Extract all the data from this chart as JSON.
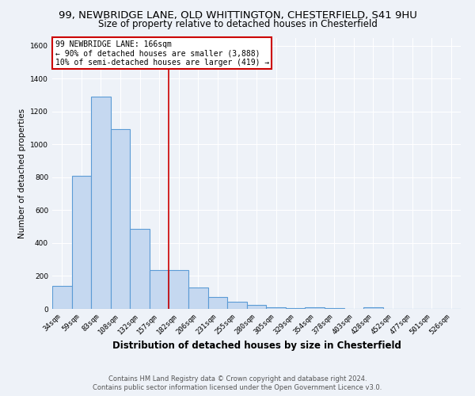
{
  "title": "99, NEWBRIDGE LANE, OLD WHITTINGTON, CHESTERFIELD, S41 9HU",
  "subtitle": "Size of property relative to detached houses in Chesterfield",
  "xlabel": "Distribution of detached houses by size in Chesterfield",
  "ylabel": "Number of detached properties",
  "categories": [
    "34sqm",
    "59sqm",
    "83sqm",
    "108sqm",
    "132sqm",
    "157sqm",
    "182sqm",
    "206sqm",
    "231sqm",
    "255sqm",
    "280sqm",
    "305sqm",
    "329sqm",
    "354sqm",
    "378sqm",
    "403sqm",
    "428sqm",
    "452sqm",
    "477sqm",
    "501sqm",
    "526sqm"
  ],
  "values": [
    140,
    810,
    1290,
    1095,
    487,
    237,
    237,
    130,
    70,
    42,
    22,
    12,
    5,
    12,
    3,
    2,
    10,
    0,
    0,
    0,
    0
  ],
  "bar_color": "#c5d8f0",
  "bar_edge_color": "#5b9bd5",
  "bar_edge_width": 0.8,
  "vline_x": 5.5,
  "vline_color": "#cc0000",
  "annotation_text": "99 NEWBRIDGE LANE: 166sqm\n← 90% of detached houses are smaller (3,888)\n10% of semi-detached houses are larger (419) →",
  "annotation_box_color": "#ffffff",
  "annotation_box_edge": "#cc0000",
  "ylim": [
    0,
    1650
  ],
  "yticks": [
    0,
    200,
    400,
    600,
    800,
    1000,
    1200,
    1400,
    1600
  ],
  "background_color": "#eef2f8",
  "grid_color": "#ffffff",
  "footer_line1": "Contains HM Land Registry data © Crown copyright and database right 2024.",
  "footer_line2": "Contains public sector information licensed under the Open Government Licence v3.0.",
  "title_fontsize": 9.5,
  "subtitle_fontsize": 8.5,
  "xlabel_fontsize": 8.5,
  "ylabel_fontsize": 7.5,
  "tick_fontsize": 6.5,
  "footer_fontsize": 6.0,
  "ann_fontsize": 7.0
}
